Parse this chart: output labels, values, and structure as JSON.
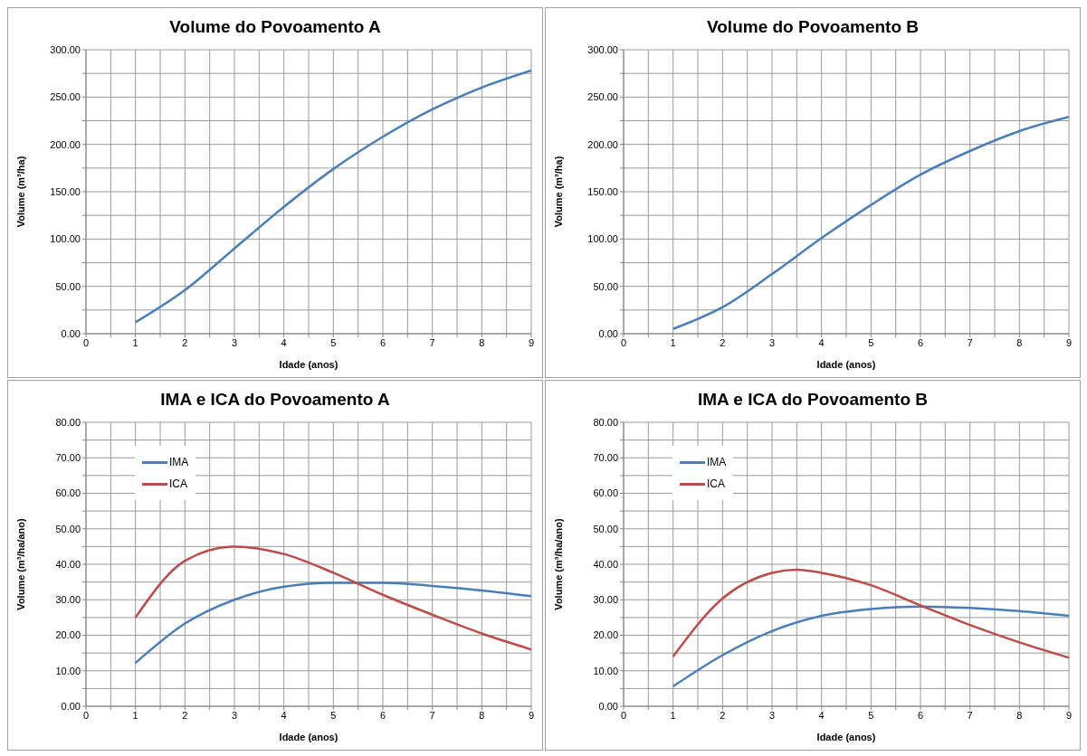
{
  "chart_data": [
    {
      "type": "line",
      "title": "Volume do Povoamento  A",
      "xlabel": "Idade (anos)",
      "ylabel": "Volume (m³/ha)",
      "grid": true,
      "legend": false,
      "x": [
        1,
        2,
        3,
        4,
        5,
        6,
        7,
        8,
        9
      ],
      "series": [
        {
          "color": "#4a7ebb",
          "values": [
            12,
            46,
            90,
            134,
            174,
            208,
            237,
            260,
            278
          ]
        }
      ],
      "xlim": [
        0,
        9
      ],
      "xticks": [
        0,
        {
          "value": 0.5,
          "label": null
        },
        1,
        {
          "value": 1.5,
          "label": null
        },
        2,
        {
          "value": 2.5,
          "label": null
        },
        3,
        {
          "value": 3.5,
          "label": null
        },
        4,
        {
          "value": 4.5,
          "label": null
        },
        5,
        {
          "value": 5.5,
          "label": null
        },
        6,
        {
          "value": 6.5,
          "label": null
        },
        7,
        {
          "value": 7.5,
          "label": null
        },
        8,
        {
          "value": 8.5,
          "label": null
        },
        9
      ],
      "ylim": [
        0,
        300
      ],
      "yticks": [
        {
          "value": 0,
          "label": "0.00"
        },
        {
          "value": 25,
          "label": null
        },
        {
          "value": 50,
          "label": "50.00"
        },
        {
          "value": 75,
          "label": null
        },
        {
          "value": 100,
          "label": "100.00"
        },
        {
          "value": 125,
          "label": null
        },
        {
          "value": 150,
          "label": "150.00"
        },
        {
          "value": 175,
          "label": null
        },
        {
          "value": 200,
          "label": "200.00"
        },
        {
          "value": 225,
          "label": null
        },
        {
          "value": 250,
          "label": "250.00"
        },
        {
          "value": 275,
          "label": null
        },
        {
          "value": 300,
          "label": "300.00"
        }
      ]
    },
    {
      "type": "line",
      "title": "Volume do Povoamento  B",
      "xlabel": "Idade (anos)",
      "ylabel": "Volume (m³/ha)",
      "grid": true,
      "legend": false,
      "x": [
        1,
        2,
        3,
        4,
        5,
        6,
        7,
        8,
        9
      ],
      "series": [
        {
          "color": "#4a7ebb",
          "values": [
            5,
            28,
            63,
            101,
            136,
            168,
            193,
            214,
            229
          ]
        }
      ],
      "xlim": [
        0,
        9
      ],
      "xticks": [
        0,
        {
          "value": 0.5,
          "label": null
        },
        1,
        {
          "value": 1.5,
          "label": null
        },
        2,
        {
          "value": 2.5,
          "label": null
        },
        3,
        {
          "value": 3.5,
          "label": null
        },
        4,
        {
          "value": 4.5,
          "label": null
        },
        5,
        {
          "value": 5.5,
          "label": null
        },
        6,
        {
          "value": 6.5,
          "label": null
        },
        7,
        {
          "value": 7.5,
          "label": null
        },
        8,
        {
          "value": 8.5,
          "label": null
        },
        9
      ],
      "ylim": [
        0,
        300
      ],
      "yticks": [
        {
          "value": 0,
          "label": "0.00"
        },
        {
          "value": 25,
          "label": null
        },
        {
          "value": 50,
          "label": "50.00"
        },
        {
          "value": 75,
          "label": null
        },
        {
          "value": 100,
          "label": "100.00"
        },
        {
          "value": 125,
          "label": null
        },
        {
          "value": 150,
          "label": "150.00"
        },
        {
          "value": 175,
          "label": null
        },
        {
          "value": 200,
          "label": "200.00"
        },
        {
          "value": 225,
          "label": null
        },
        {
          "value": 250,
          "label": "250.00"
        },
        {
          "value": 275,
          "label": null
        },
        {
          "value": 300,
          "label": "300.00"
        }
      ]
    },
    {
      "type": "line",
      "title": "IMA e ICA do Povoamento A",
      "xlabel": "Idade (anos)",
      "ylabel": "Volume  (m³/ha/ano)",
      "grid": true,
      "legend": "top left",
      "x": [
        1,
        2,
        3,
        4,
        5,
        6,
        7,
        8,
        9
      ],
      "series": [
        {
          "name": "IMA",
          "color": "#4a7ebb",
          "values": [
            12.2,
            23.3,
            30,
            33.7,
            34.8,
            34.8,
            33.9,
            32.6,
            31
          ]
        },
        {
          "name": "ICA",
          "color": "#be4b48",
          "values": [
            25,
            41,
            45,
            42.9,
            37.6,
            31.4,
            25.8,
            20.5,
            16
          ]
        }
      ],
      "xlim": [
        0,
        9
      ],
      "xticks": [
        0,
        {
          "value": 0.5,
          "label": null
        },
        1,
        {
          "value": 1.5,
          "label": null
        },
        2,
        {
          "value": 2.5,
          "label": null
        },
        3,
        {
          "value": 3.5,
          "label": null
        },
        4,
        {
          "value": 4.5,
          "label": null
        },
        5,
        {
          "value": 5.5,
          "label": null
        },
        6,
        {
          "value": 6.5,
          "label": null
        },
        7,
        {
          "value": 7.5,
          "label": null
        },
        8,
        {
          "value": 8.5,
          "label": null
        },
        9
      ],
      "ylim": [
        0,
        80
      ],
      "yticks": [
        {
          "value": 0,
          "label": "0.00"
        },
        {
          "value": 5,
          "label": null
        },
        {
          "value": 10,
          "label": "10.00"
        },
        {
          "value": 15,
          "label": null
        },
        {
          "value": 20,
          "label": "20.00"
        },
        {
          "value": 25,
          "label": null
        },
        {
          "value": 30,
          "label": "30.00"
        },
        {
          "value": 35,
          "label": null
        },
        {
          "value": 40,
          "label": "40.00"
        },
        {
          "value": 45,
          "label": null
        },
        {
          "value": 50,
          "label": "50.00"
        },
        {
          "value": 55,
          "label": null
        },
        {
          "value": 60,
          "label": "60.00"
        },
        {
          "value": 65,
          "label": null
        },
        {
          "value": 70,
          "label": "70.00"
        },
        {
          "value": 75,
          "label": null
        },
        {
          "value": 80,
          "label": "80.00"
        }
      ]
    },
    {
      "type": "line",
      "title": "IMA e ICA do Povoamento B",
      "xlabel": "Idade (anos)",
      "ylabel": "Volume  (m³/ha/ano)",
      "grid": true,
      "legend": "top left",
      "x": [
        1,
        2,
        3,
        4,
        5,
        6,
        7,
        8,
        9
      ],
      "series": [
        {
          "name": "IMA",
          "color": "#4a7ebb",
          "values": [
            5.6,
            14.4,
            21.2,
            25.5,
            27.4,
            28.1,
            27.7,
            26.8,
            25.5
          ]
        },
        {
          "name": "ICA",
          "color": "#be4b48",
          "x": [
            1,
            2,
            3,
            3.5,
            4,
            5,
            6,
            7,
            8,
            9
          ],
          "values": [
            14,
            30.4,
            37.6,
            38.5,
            37.6,
            34.1,
            28.4,
            22.9,
            18,
            13.7
          ]
        }
      ],
      "xlim": [
        0,
        9
      ],
      "xticks": [
        0,
        {
          "value": 0.5,
          "label": null
        },
        1,
        {
          "value": 1.5,
          "label": null
        },
        2,
        {
          "value": 2.5,
          "label": null
        },
        3,
        {
          "value": 3.5,
          "label": null
        },
        4,
        {
          "value": 4.5,
          "label": null
        },
        5,
        {
          "value": 5.5,
          "label": null
        },
        6,
        {
          "value": 6.5,
          "label": null
        },
        7,
        {
          "value": 7.5,
          "label": null
        },
        8,
        {
          "value": 8.5,
          "label": null
        },
        9
      ],
      "ylim": [
        0,
        80
      ],
      "yticks": [
        {
          "value": 0,
          "label": "0.00"
        },
        {
          "value": 5,
          "label": null
        },
        {
          "value": 10,
          "label": "10.00"
        },
        {
          "value": 15,
          "label": null
        },
        {
          "value": 20,
          "label": "20.00"
        },
        {
          "value": 25,
          "label": null
        },
        {
          "value": 30,
          "label": "30.00"
        },
        {
          "value": 35,
          "label": null
        },
        {
          "value": 40,
          "label": "40.00"
        },
        {
          "value": 45,
          "label": null
        },
        {
          "value": 50,
          "label": "50.00"
        },
        {
          "value": 55,
          "label": null
        },
        {
          "value": 60,
          "label": "60.00"
        },
        {
          "value": 65,
          "label": null
        },
        {
          "value": 70,
          "label": "70.00"
        },
        {
          "value": 75,
          "label": null
        },
        {
          "value": 80,
          "label": "80.00"
        }
      ]
    }
  ]
}
